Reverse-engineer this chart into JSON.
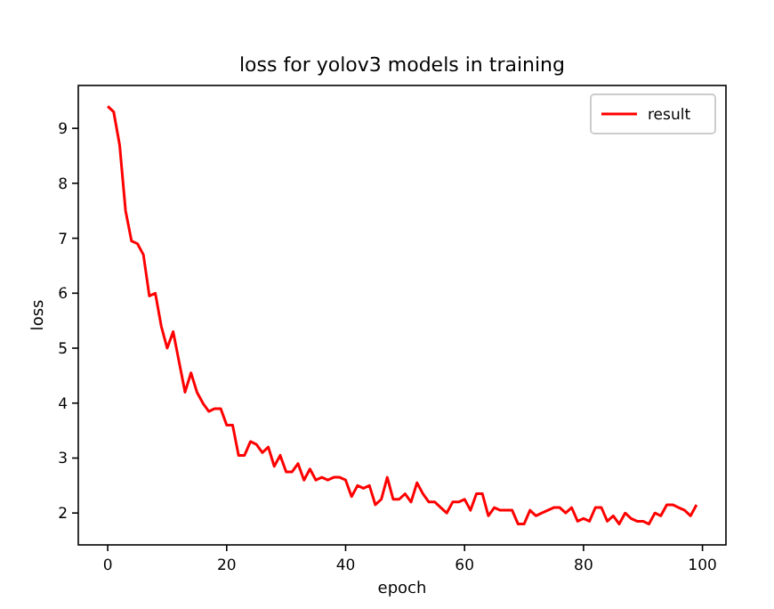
{
  "chart_data": {
    "type": "line",
    "title": "loss for yolov3 models in training",
    "xlabel": "epoch",
    "ylabel": "loss",
    "x": [
      0,
      1,
      2,
      3,
      4,
      5,
      6,
      7,
      8,
      9,
      10,
      11,
      12,
      13,
      14,
      15,
      16,
      17,
      18,
      19,
      20,
      21,
      22,
      23,
      24,
      25,
      26,
      27,
      28,
      29,
      30,
      31,
      32,
      33,
      34,
      35,
      36,
      37,
      38,
      39,
      40,
      41,
      42,
      43,
      44,
      45,
      46,
      47,
      48,
      49,
      50,
      51,
      52,
      53,
      54,
      55,
      56,
      57,
      58,
      59,
      60,
      61,
      62,
      63,
      64,
      65,
      66,
      67,
      68,
      69,
      70,
      71,
      72,
      73,
      74,
      75,
      76,
      77,
      78,
      79,
      80,
      81,
      82,
      83,
      84,
      85,
      86,
      87,
      88,
      89,
      90,
      91,
      92,
      93,
      94,
      95,
      96,
      97,
      98,
      99
    ],
    "series": [
      {
        "name": "result",
        "color": "#ff0000",
        "values": [
          9.4,
          9.3,
          8.7,
          7.5,
          6.95,
          6.9,
          6.7,
          5.95,
          6.0,
          5.4,
          5.0,
          5.3,
          4.75,
          4.2,
          4.55,
          4.2,
          4.0,
          3.85,
          3.9,
          3.9,
          3.6,
          3.6,
          3.05,
          3.05,
          3.3,
          3.25,
          3.1,
          3.2,
          2.85,
          3.05,
          2.75,
          2.75,
          2.9,
          2.6,
          2.8,
          2.6,
          2.65,
          2.6,
          2.65,
          2.65,
          2.6,
          2.3,
          2.5,
          2.45,
          2.5,
          2.15,
          2.25,
          2.65,
          2.25,
          2.25,
          2.35,
          2.2,
          2.55,
          2.35,
          2.2,
          2.2,
          2.1,
          2.0,
          2.2,
          2.2,
          2.25,
          2.05,
          2.35,
          2.35,
          1.95,
          2.1,
          2.05,
          2.05,
          2.05,
          1.8,
          1.8,
          2.05,
          1.95,
          2.0,
          2.05,
          2.1,
          2.1,
          2.0,
          2.1,
          1.85,
          1.9,
          1.85,
          2.1,
          2.1,
          1.85,
          1.95,
          1.8,
          2.0,
          1.9,
          1.85,
          1.85,
          1.8,
          2.0,
          1.95,
          2.15,
          2.15,
          2.1,
          2.05,
          1.95,
          2.15
        ]
      }
    ],
    "xlim": [
      -4.95,
      103.95
    ],
    "ylim": [
      1.42,
      9.78
    ],
    "xticks": [
      0,
      20,
      40,
      60,
      80,
      100
    ],
    "yticks": [
      2,
      3,
      4,
      5,
      6,
      7,
      8,
      9
    ],
    "legend": "top right",
    "grid": false
  }
}
